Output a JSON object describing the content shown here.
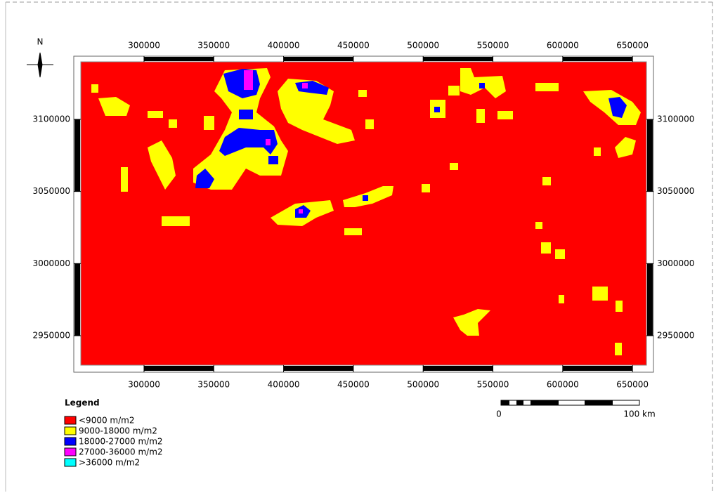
{
  "map": {
    "north_label": "N",
    "x_axis": {
      "lim": [
        254700,
        660000
      ],
      "ticks": [
        300000,
        350000,
        400000,
        450000,
        500000,
        550000,
        600000,
        650000
      ]
    },
    "y_axis": {
      "lim": [
        2929550,
        3139900
      ],
      "ticks": [
        3100000,
        3050000,
        3000000,
        2950000
      ]
    },
    "legend": {
      "title": "Legend",
      "items": [
        {
          "label": "<9000 m/m2",
          "color": "#ff0000"
        },
        {
          "label": "9000-18000 m/m2",
          "color": "#ffff00"
        },
        {
          "label": "18000-27000 m/m2",
          "color": "#0000ff"
        },
        {
          "label": "27000-36000 m/m2",
          "color": "#ff00ff"
        },
        {
          "label": ">36000 m/m2",
          "color": "#00ffff"
        }
      ]
    },
    "scale_bar": {
      "start_label": "0",
      "end_label": "100 km"
    }
  }
}
